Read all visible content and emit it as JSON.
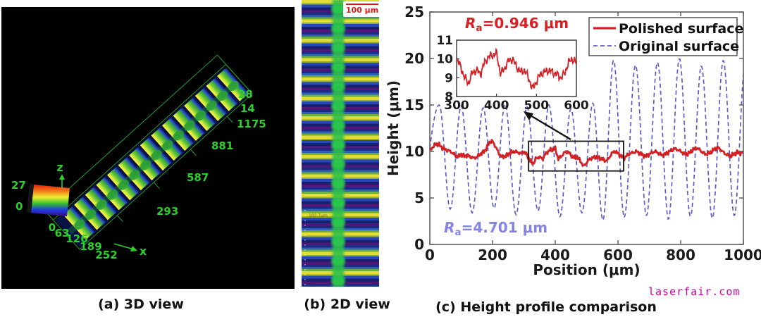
{
  "figure": {
    "panel_a": {
      "caption": "(a) 3D view",
      "axis_label_x": "x",
      "axis_label_z": "z",
      "x_ticks": [
        "0",
        "63",
        "126",
        "189",
        "252"
      ],
      "y_ticks": [
        "293",
        "587",
        "881",
        "1175"
      ],
      "z_ticks": [
        "14",
        "28"
      ],
      "colorbar": {
        "top_label": "27",
        "bottom_label": "0",
        "colors": [
          "#e82010",
          "#f07818",
          "#f0ee30",
          "#35c032",
          "#2038e0",
          "#381080"
        ]
      },
      "ridge_count": 15,
      "label_color": "#2bd02b",
      "wire_color": "#1fae3c",
      "background": "#000000"
    },
    "panel_b": {
      "caption": "(b) 2D view",
      "scale_bar_label": "100 μm",
      "annotation": "183.7μm"
    },
    "panel_c": {
      "caption": "(c) Height profile comparison",
      "watermark": "laserfair.com"
    }
  },
  "chart_data": {
    "type": "line",
    "title": "",
    "xlabel": "Position (μm)",
    "ylabel": "Height (μm)",
    "xlim": [
      0,
      1000
    ],
    "ylim": [
      0,
      25
    ],
    "x_ticks": [
      0,
      200,
      400,
      600,
      800,
      1000
    ],
    "y_ticks": [
      0,
      5,
      10,
      15,
      20,
      25
    ],
    "grid": false,
    "legend": {
      "position": "top-right",
      "entries": [
        {
          "label": "Polished surface",
          "color": "#d42125",
          "style": "solid"
        },
        {
          "label": "Original surface",
          "color": "#5f5dc6",
          "style": "dashed"
        }
      ]
    },
    "annotations": {
      "polished_ra": {
        "prefix": "R",
        "sub": "a",
        "value": "=0.946 μm",
        "color": "#d91f24"
      },
      "original_ra": {
        "prefix": "R",
        "sub": "a",
        "value": "=4.701 μm",
        "color": "#8583e4"
      },
      "zoom_rect": {
        "x0": 315,
        "x1": 618,
        "y0": 7.9,
        "y1": 11.1
      }
    },
    "series": [
      {
        "name": "Polished surface",
        "color": "#d42125",
        "style": "solid",
        "width": 2.8,
        "x_start": 0,
        "x_step": 10,
        "values": [
          10.1,
          10.5,
          10.8,
          10.7,
          10.4,
          10.2,
          10.1,
          9.9,
          9.6,
          9.4,
          9.7,
          9.5,
          9.6,
          9.4,
          9.3,
          9.4,
          9.7,
          9.9,
          10.3,
          11.0,
          11.1,
          10.5,
          9.8,
          9.4,
          9.5,
          9.7,
          9.9,
          10.0,
          9.9,
          9.8,
          10.0,
          9.6,
          9.0,
          8.7,
          9.3,
          9.4,
          9.2,
          9.8,
          10.1,
          10.2,
          10.3,
          9.2,
          9.5,
          9.9,
          10.0,
          9.6,
          9.3,
          9.4,
          9.0,
          8.4,
          8.8,
          9.2,
          9.3,
          9.4,
          9.3,
          9.2,
          9.0,
          9.2,
          9.8,
          10.0,
          9.8,
          9.5,
          9.3,
          9.6,
          9.8,
          9.9,
          10.0,
          9.8,
          9.6,
          9.5,
          9.7,
          9.9,
          10.0,
          9.8,
          9.6,
          9.7,
          9.9,
          10.1,
          10.3,
          10.2,
          10.0,
          9.8,
          9.7,
          9.9,
          10.2,
          10.4,
          10.2,
          9.9,
          9.7,
          9.8,
          10.0,
          10.3,
          10.4,
          10.1,
          9.8,
          9.6,
          9.5,
          9.7,
          9.9,
          9.8,
          9.9
        ],
        "noise": {
          "amp": 0.13,
          "f1": 0.9,
          "a2": 0.7,
          "f2": 0.41,
          "p2": 1.3,
          "a3": 0.5,
          "f3": 1.7,
          "p3": 0.5
        }
      },
      {
        "name": "Original surface",
        "color": "#5f5dc6",
        "style": "dashed",
        "width": 1.7,
        "dash": "6 4",
        "extremes": [
          [
            -40,
            3.0
          ],
          [
            30,
            15.0
          ],
          [
            65,
            3.8
          ],
          [
            100,
            14.9
          ],
          [
            135,
            3.4
          ],
          [
            170,
            14.7
          ],
          [
            205,
            3.9
          ],
          [
            240,
            15.1
          ],
          [
            275,
            3.2
          ],
          [
            310,
            14.8
          ],
          [
            345,
            3.6
          ],
          [
            380,
            15.0
          ],
          [
            415,
            3.0
          ],
          [
            450,
            14.6
          ],
          [
            485,
            3.4
          ],
          [
            520,
            15.2
          ],
          [
            552,
            2.6
          ],
          [
            586,
            19.8
          ],
          [
            620,
            2.9
          ],
          [
            656,
            19.3
          ],
          [
            691,
            3.1
          ],
          [
            726,
            19.6
          ],
          [
            761,
            2.7
          ],
          [
            796,
            20.0
          ],
          [
            831,
            3.0
          ],
          [
            866,
            19.2
          ],
          [
            901,
            2.8
          ],
          [
            936,
            19.8
          ],
          [
            971,
            3.1
          ],
          [
            1006,
            19.5
          ]
        ]
      }
    ],
    "inset": {
      "source_series": "Polished surface",
      "xlim": [
        300,
        600
      ],
      "ylim": [
        8,
        11
      ],
      "x_ticks": [
        300,
        400,
        500,
        600
      ],
      "y_ticks": [
        8,
        9,
        10,
        11
      ]
    }
  }
}
